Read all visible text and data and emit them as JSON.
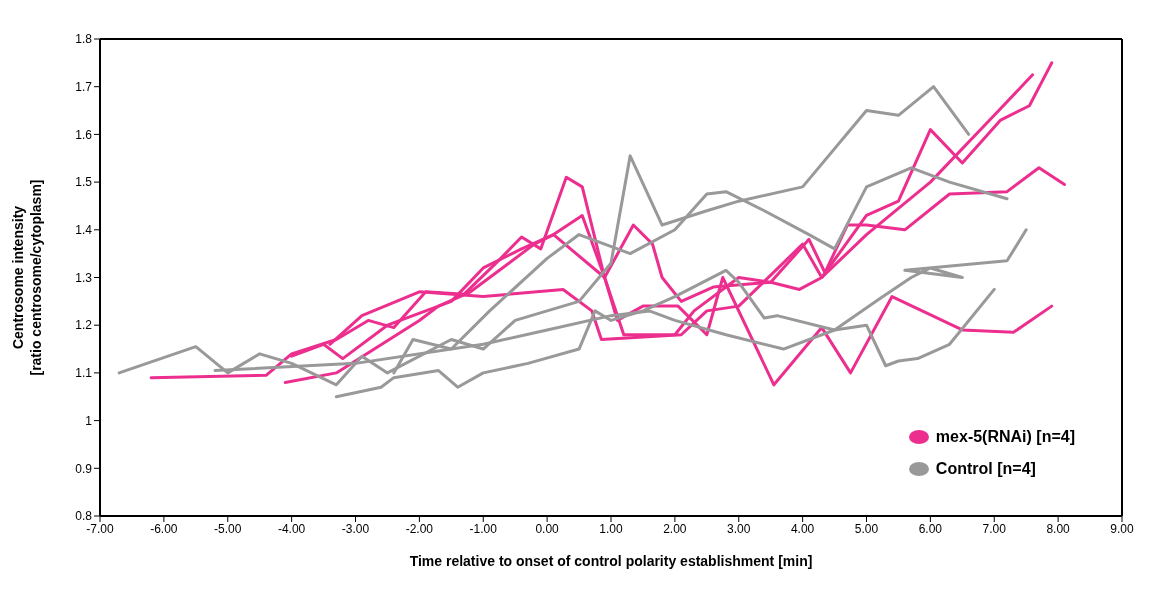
{
  "chart_data": {
    "type": "line",
    "xlabel": "Time relative to onset of control polarity establishment [min]",
    "ylabel": "Centrosome intensity\n[ratio centrosome/cytoplasm]",
    "xlim": [
      -7,
      9
    ],
    "ylim": [
      0.8,
      1.8
    ],
    "xticks": [
      {
        "value": -7,
        "label": "-7.00"
      },
      {
        "value": -6,
        "label": "-6.00"
      },
      {
        "value": -5,
        "label": "-5.00"
      },
      {
        "value": -4,
        "label": "-4.00"
      },
      {
        "value": -3,
        "label": "-3.00"
      },
      {
        "value": -2,
        "label": "-2.00"
      },
      {
        "value": -1,
        "label": "-1.00"
      },
      {
        "value": 0,
        "label": "0.00"
      },
      {
        "value": 1,
        "label": "1.00"
      },
      {
        "value": 2,
        "label": "2.00"
      },
      {
        "value": 3,
        "label": "3.00"
      },
      {
        "value": 4,
        "label": "4.00"
      },
      {
        "value": 5,
        "label": "5.00"
      },
      {
        "value": 6,
        "label": "6.00"
      },
      {
        "value": 7,
        "label": "7.00"
      },
      {
        "value": 8,
        "label": "8.00"
      },
      {
        "value": 9,
        "label": "9.00"
      }
    ],
    "yticks": [
      0.8,
      0.9,
      1,
      1.1,
      1.2,
      1.3,
      1.4,
      1.5,
      1.6,
      1.7,
      1.8
    ],
    "legend": "bottom right",
    "marker": "none",
    "line_style": "solid",
    "series": [
      {
        "name": "mex-5(RNAi) [n=4]",
        "color": "#ec2f8f",
        "x": [
          -6.2,
          -4.4,
          -4.0,
          -3.3,
          -2.8,
          -2.4,
          -1.9,
          -1.3,
          -0.8,
          -0.4,
          -0.1,
          0.3,
          0.55,
          0.9,
          1.1,
          1.5,
          2.05,
          2.5,
          2.75,
          3.55,
          4.3,
          4.75,
          5.4,
          6.5,
          7.3,
          7.9
        ],
        "values": [
          1.09,
          1.095,
          1.14,
          1.17,
          1.21,
          1.195,
          1.27,
          1.265,
          1.33,
          1.385,
          1.36,
          1.51,
          1.49,
          1.3,
          1.21,
          1.24,
          1.24,
          1.18,
          1.3,
          1.075,
          1.195,
          1.1,
          1.26,
          1.19,
          1.185,
          1.24
        ]
      },
      {
        "color": "#ec2f8f",
        "x": [
          -4.0,
          -3.5,
          -3.2,
          -2.5,
          -1.5,
          -1.0,
          -0.4,
          0.1,
          0.55,
          0.9,
          1.2,
          2.0,
          2.3,
          3.0,
          3.5,
          3.95,
          4.3,
          5.0,
          5.5,
          6.0,
          6.5,
          7.1,
          7.55,
          7.9
        ],
        "values": [
          1.135,
          1.16,
          1.13,
          1.2,
          1.25,
          1.32,
          1.36,
          1.39,
          1.43,
          1.3,
          1.18,
          1.18,
          1.23,
          1.3,
          1.29,
          1.275,
          1.3,
          1.43,
          1.46,
          1.61,
          1.54,
          1.63,
          1.66,
          1.75
        ]
      },
      {
        "color": "#ec2f8f",
        "x": [
          -4.1,
          -3.3,
          -2.0,
          -1.7,
          -1.2,
          -0.8,
          -0.2,
          0.1,
          0.9,
          1.35,
          1.65,
          1.8,
          2.1,
          2.6,
          3.5,
          4.1,
          4.35,
          4.7,
          5.0,
          5.6,
          6.3,
          7.2,
          7.7,
          8.1
        ],
        "values": [
          1.08,
          1.1,
          1.21,
          1.24,
          1.27,
          1.31,
          1.37,
          1.39,
          1.3,
          1.41,
          1.37,
          1.3,
          1.25,
          1.28,
          1.29,
          1.38,
          1.31,
          1.41,
          1.41,
          1.4,
          1.475,
          1.48,
          1.53,
          1.495
        ]
      },
      {
        "color": "#ec2f8f",
        "x": [
          -3.4,
          -2.9,
          -2.0,
          -1.0,
          0.25,
          0.7,
          0.85,
          2.1,
          2.5,
          3.0,
          4.0,
          4.3,
          5.0,
          6.0,
          7.0,
          7.6
        ],
        "values": [
          1.16,
          1.22,
          1.27,
          1.26,
          1.275,
          1.23,
          1.17,
          1.18,
          1.23,
          1.24,
          1.37,
          1.3,
          1.39,
          1.5,
          1.64,
          1.725
        ]
      },
      {
        "name": "Control [n=4]",
        "color": "#999999",
        "x": [
          -6.7,
          -5.5,
          -5.0,
          -4.5,
          -4.0,
          -3.3,
          -2.9,
          -2.5,
          -1.5,
          -1.0,
          -0.5,
          0.5,
          1.0,
          1.3,
          1.8,
          2.5,
          3.0,
          4.0,
          5.0,
          5.5,
          6.05,
          6.6
        ],
        "values": [
          1.1,
          1.155,
          1.1,
          1.14,
          1.12,
          1.075,
          1.135,
          1.1,
          1.17,
          1.15,
          1.21,
          1.25,
          1.33,
          1.555,
          1.41,
          1.44,
          1.46,
          1.49,
          1.65,
          1.64,
          1.7,
          1.6
        ]
      },
      {
        "color": "#999999",
        "x": [
          -5.2,
          -3.0,
          -1.0,
          0.0,
          1.0,
          1.6,
          2.0,
          2.8,
          3.7,
          4.5,
          5.0,
          5.3,
          5.5,
          5.8,
          6.3,
          7.0
        ],
        "values": [
          1.105,
          1.12,
          1.16,
          1.19,
          1.22,
          1.23,
          1.21,
          1.18,
          1.15,
          1.19,
          1.2,
          1.115,
          1.125,
          1.13,
          1.16,
          1.275
        ]
      },
      {
        "color": "#999999",
        "x": [
          -3.3,
          -2.6,
          -2.4,
          -1.7,
          -1.4,
          -1.0,
          -0.3,
          0.5,
          0.75,
          1.0,
          1.5,
          2.0,
          2.8,
          3.0,
          3.4,
          3.6,
          4.5,
          5.2,
          5.7,
          6.0,
          6.5,
          5.6,
          7.2,
          7.5
        ],
        "values": [
          1.05,
          1.07,
          1.09,
          1.105,
          1.07,
          1.1,
          1.12,
          1.15,
          1.23,
          1.21,
          1.23,
          1.26,
          1.315,
          1.29,
          1.215,
          1.22,
          1.19,
          1.255,
          1.3,
          1.32,
          1.3,
          1.315,
          1.335,
          1.4
        ]
      },
      {
        "color": "#999999",
        "x": [
          -2.4,
          -2.1,
          -1.5,
          -0.9,
          0.0,
          0.5,
          1.3,
          2.0,
          2.5,
          2.8,
          3.4,
          4.1,
          4.5,
          5.0,
          5.7,
          6.3,
          7.2
        ],
        "values": [
          1.1,
          1.17,
          1.15,
          1.23,
          1.34,
          1.39,
          1.35,
          1.4,
          1.475,
          1.48,
          1.44,
          1.39,
          1.36,
          1.49,
          1.53,
          1.5,
          1.465
        ]
      }
    ]
  }
}
